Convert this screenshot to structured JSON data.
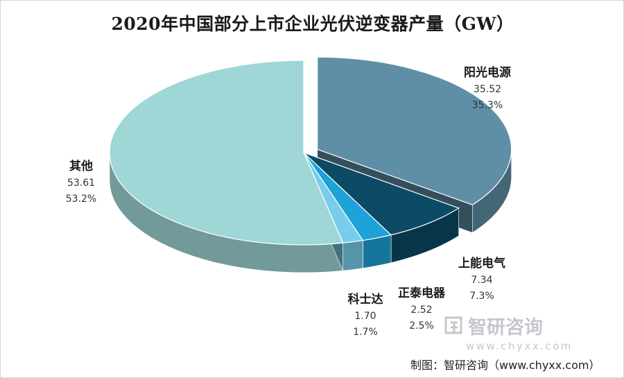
{
  "chart_data": {
    "type": "pie",
    "title": "2020年中国部分上市企业光伏逆变器产量（GW）",
    "unit": "GW",
    "slices": [
      {
        "name": "阳光电源",
        "value": 35.52,
        "percent": "35.3%",
        "color": "#5f8fa7"
      },
      {
        "name": "上能电气",
        "value": 7.34,
        "percent": "7.3%",
        "color": "#0c4a66"
      },
      {
        "name": "正泰电器",
        "value": 2.52,
        "percent": "2.5%",
        "color": "#1da3d8"
      },
      {
        "name": "科士达",
        "value": 1.7,
        "percent": "1.7%",
        "color": "#78cdec"
      },
      {
        "name": "其他",
        "value": 53.61,
        "percent": "53.2%",
        "color": "#9fd6d6"
      }
    ],
    "legend": "none",
    "style": "3d-exploded"
  },
  "watermark": {
    "name": "智研咨询",
    "url": "www.chyxx.com"
  },
  "source": "制图：智研咨询（www.chyxx.com）"
}
